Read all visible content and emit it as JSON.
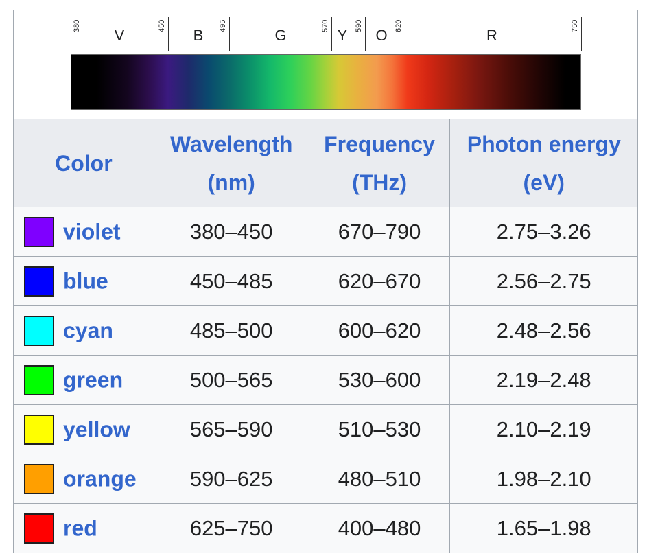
{
  "spectrum": {
    "ticks": [
      "380",
      "450",
      "495",
      "570",
      "590",
      "620",
      "750"
    ],
    "bands": [
      "V",
      "B",
      "G",
      "Y",
      "O",
      "R"
    ]
  },
  "table": {
    "headers": {
      "color": "Color",
      "wavelength_line1": "Wavelength",
      "wavelength_line2": "(nm)",
      "frequency_line1": "Frequency",
      "frequency_line2": "(THz)",
      "energy_line1": "Photon energy",
      "energy_line2": "(eV)"
    },
    "rows": [
      {
        "name": "violet",
        "swatch": "#7f00ff",
        "wavelength": "380–450",
        "frequency": "670–790",
        "energy": "2.75–3.26"
      },
      {
        "name": "blue",
        "swatch": "#0000ff",
        "wavelength": "450–485",
        "frequency": "620–670",
        "energy": "2.56–2.75"
      },
      {
        "name": "cyan",
        "swatch": "#00ffff",
        "wavelength": "485–500",
        "frequency": "600–620",
        "energy": "2.48–2.56"
      },
      {
        "name": "green",
        "swatch": "#00ff00",
        "wavelength": "500–565",
        "frequency": "530–600",
        "energy": "2.19–2.48"
      },
      {
        "name": "yellow",
        "swatch": "#ffff00",
        "wavelength": "565–590",
        "frequency": "510–530",
        "energy": "2.10–2.19"
      },
      {
        "name": "orange",
        "swatch": "#ff9f00",
        "wavelength": "590–625",
        "frequency": "480–510",
        "energy": "1.98–2.10"
      },
      {
        "name": "red",
        "swatch": "#ff0000",
        "wavelength": "625–750",
        "frequency": "400–480",
        "energy": "1.65–1.98"
      }
    ]
  },
  "colors": {
    "link": "#3366cc",
    "header_bg": "#eaecf0",
    "cell_bg": "#f8f9fa",
    "border": "#a2a9b1"
  }
}
